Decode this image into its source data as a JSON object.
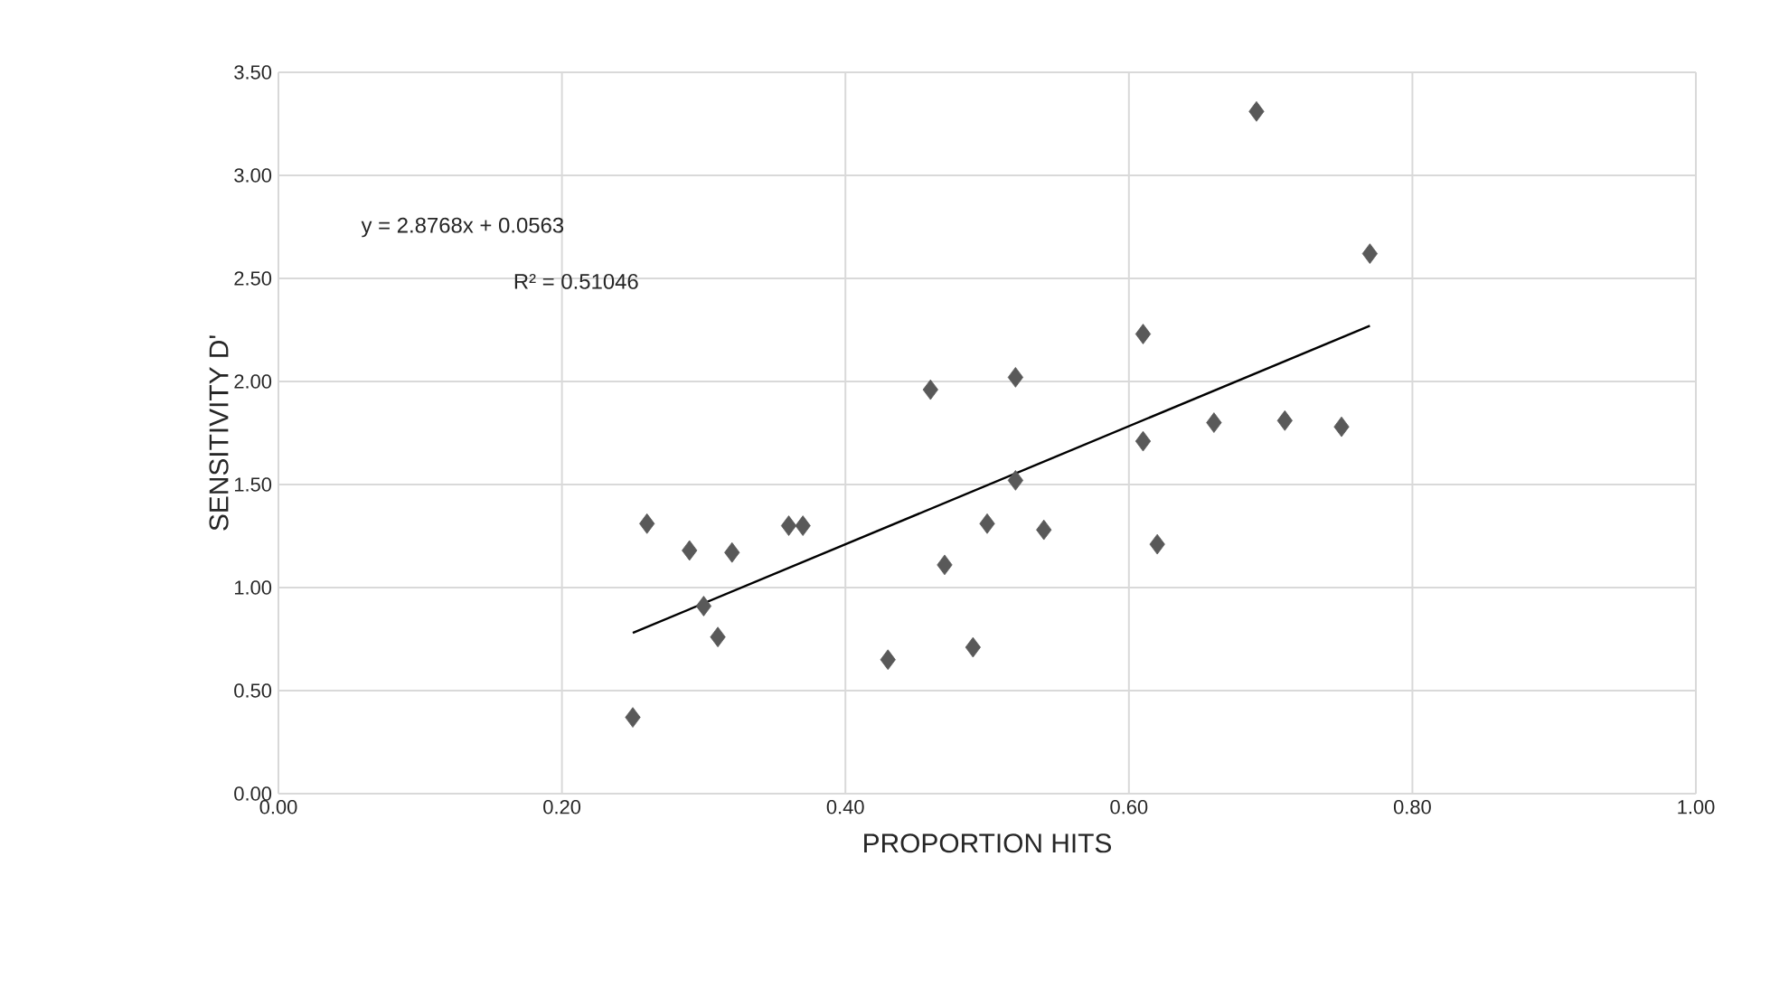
{
  "chart_data": {
    "type": "scatter",
    "xlabel": "PROPORTION HITS",
    "ylabel": "SENSITIVITY D'",
    "annotations": [
      "y = 2.8768x + 0.0563",
      "R² = 0.51046"
    ],
    "xlim": [
      0,
      1
    ],
    "xticks": [
      {
        "value": 0,
        "label": "0.00"
      },
      {
        "value": 0.2,
        "label": "0.20"
      },
      {
        "value": 0.4,
        "label": "0.40"
      },
      {
        "value": 0.6,
        "label": "0.60"
      },
      {
        "value": 0.8,
        "label": "0.80"
      },
      {
        "value": 1,
        "label": "1.00"
      }
    ],
    "ylim": [
      0,
      3.5
    ],
    "yticks": [
      {
        "value": 0,
        "label": "0.00"
      },
      {
        "value": 0.5,
        "label": "0.50"
      },
      {
        "value": 1,
        "label": "1.00"
      },
      {
        "value": 1.5,
        "label": "1.50"
      },
      {
        "value": 2,
        "label": "2.00"
      },
      {
        "value": 2.5,
        "label": "2.50"
      },
      {
        "value": 3,
        "label": "3.00"
      },
      {
        "value": 3.5,
        "label": "3.50"
      }
    ],
    "grid": true,
    "marker": "diamond",
    "series": [
      {
        "color": "#595959",
        "x": [
          0.25,
          0.26,
          0.29,
          0.3,
          0.31,
          0.32,
          0.36,
          0.37,
          0.43,
          0.46,
          0.47,
          0.49,
          0.5,
          0.52,
          0.52,
          0.54,
          0.61,
          0.61,
          0.62,
          0.66,
          0.69,
          0.71,
          0.75,
          0.77
        ],
        "values": [
          0.37,
          1.31,
          1.18,
          0.91,
          0.76,
          1.17,
          1.3,
          1.3,
          0.65,
          1.96,
          1.11,
          0.71,
          1.31,
          1.52,
          2.02,
          1.28,
          2.23,
          1.71,
          1.21,
          1.8,
          3.31,
          1.81,
          1.78,
          2.62
        ]
      },
      {
        "type": "line",
        "color": "#000000",
        "marker": "none",
        "x": [
          0.25,
          0.77
        ],
        "values": [
          0.78,
          2.27
        ]
      }
    ]
  }
}
